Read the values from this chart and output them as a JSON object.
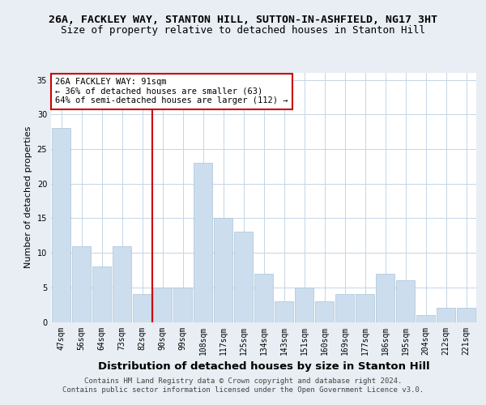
{
  "title1": "26A, FACKLEY WAY, STANTON HILL, SUTTON-IN-ASHFIELD, NG17 3HT",
  "title2": "Size of property relative to detached houses in Stanton Hill",
  "xlabel": "Distribution of detached houses by size in Stanton Hill",
  "ylabel": "Number of detached properties",
  "categories": [
    "47sqm",
    "56sqm",
    "64sqm",
    "73sqm",
    "82sqm",
    "90sqm",
    "99sqm",
    "108sqm",
    "117sqm",
    "125sqm",
    "134sqm",
    "143sqm",
    "151sqm",
    "160sqm",
    "169sqm",
    "177sqm",
    "186sqm",
    "195sqm",
    "204sqm",
    "212sqm",
    "221sqm"
  ],
  "values": [
    28,
    11,
    8,
    11,
    4,
    5,
    5,
    23,
    15,
    13,
    7,
    3,
    5,
    3,
    4,
    4,
    7,
    6,
    1,
    2,
    2
  ],
  "bar_color": "#ccdded",
  "bar_edgecolor": "#a8c4d8",
  "vline_color": "#cc0000",
  "annotation_text": "26A FACKLEY WAY: 91sqm\n← 36% of detached houses are smaller (63)\n64% of semi-detached houses are larger (112) →",
  "annotation_box_facecolor": "#ffffff",
  "annotation_box_edgecolor": "#cc0000",
  "ylim": [
    0,
    36
  ],
  "yticks": [
    0,
    5,
    10,
    15,
    20,
    25,
    30,
    35
  ],
  "footer1": "Contains HM Land Registry data © Crown copyright and database right 2024.",
  "footer2": "Contains public sector information licensed under the Open Government Licence v3.0.",
  "background_color": "#e8eef4",
  "plot_background": "#ffffff",
  "grid_color": "#c5d5e5",
  "title1_fontsize": 9.5,
  "title2_fontsize": 9,
  "xlabel_fontsize": 9.5,
  "ylabel_fontsize": 8,
  "tick_fontsize": 7,
  "annotation_fontsize": 7.5,
  "footer_fontsize": 6.5
}
